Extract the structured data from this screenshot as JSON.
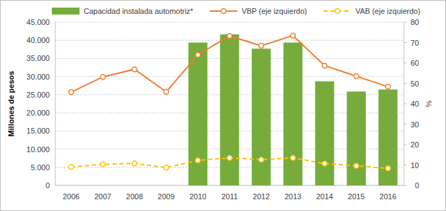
{
  "chart_data": {
    "type": "bar",
    "y_label": "Millones de pesos",
    "y2_label": "%",
    "categories": [
      "2006",
      "2007",
      "2008",
      "2009",
      "2010",
      "2011",
      "2012",
      "2013",
      "2014",
      "2015",
      "2016"
    ],
    "series": [
      {
        "name": "Capacidad instalada automotriz*",
        "type": "bar",
        "axis": "y2",
        "color": "#77ac3c",
        "values": [
          null,
          null,
          null,
          null,
          70,
          74,
          67,
          70,
          51,
          46,
          47
        ]
      },
      {
        "name": "VBP (eje izquierdo)",
        "type": "line",
        "color": "#ed7d31",
        "marker": "circle",
        "line_style": "solid",
        "values": [
          25700,
          29900,
          32000,
          25800,
          36000,
          41200,
          38500,
          41300,
          33000,
          30100,
          27200
        ]
      },
      {
        "name": "VAB (eje izquierdo)",
        "type": "line",
        "color": "#ffc000",
        "marker": "circle",
        "line_style": "dashed",
        "values": [
          5100,
          5800,
          6100,
          4900,
          6900,
          7600,
          7100,
          7600,
          6000,
          5400,
          4700
        ]
      }
    ],
    "ylim": [
      0,
      45000
    ],
    "yticks": [
      0,
      {
        "value": 5000,
        "label": "5.000"
      },
      {
        "value": 10000,
        "label": "10.000"
      },
      {
        "value": 15000,
        "label": "15.000"
      },
      {
        "value": 20000,
        "label": "20.000"
      },
      {
        "value": 25000,
        "label": "25.000"
      },
      {
        "value": 30000,
        "label": "30.000"
      },
      {
        "value": 35000,
        "label": "35.000"
      },
      {
        "value": 40000,
        "label": "40.000"
      },
      {
        "value": 45000,
        "label": "45.000"
      }
    ],
    "y2lim": [
      0,
      80
    ],
    "y2ticks": [
      0,
      10,
      20,
      30,
      40,
      50,
      60,
      70,
      80
    ],
    "grid": true,
    "legend": "top"
  }
}
